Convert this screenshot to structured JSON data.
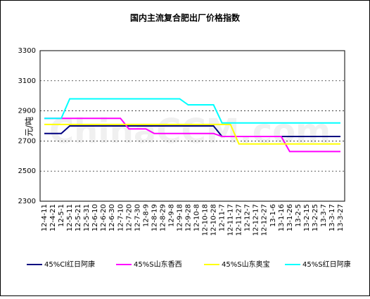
{
  "chart_data": {
    "type": "line",
    "title": "国内主流复合肥出厂价格指数",
    "y_label": "元/吨",
    "watermark": "ChinaCCM.com",
    "categories": [
      "12-4-11",
      "12-4-21",
      "12-5-1",
      "12-5-11",
      "12-5-21",
      "12-5-31",
      "12-6-10",
      "12-6-20",
      "12-6-30",
      "12-7-10",
      "12-7-20",
      "12-7-30",
      "12-8-9",
      "12-8-19",
      "12-8-29",
      "12-9-8",
      "12-9-18",
      "12-9-28",
      "12-10-8",
      "12-10-18",
      "12-10-28",
      "12-11-7",
      "12-11-17",
      "12-11-27",
      "12-12-7",
      "12-12-17",
      "12-12-27",
      "13-1-6",
      "13-1-16",
      "13-1-26",
      "13-2-5",
      "13-2-15",
      "13-2-25",
      "13-3-7",
      "13-3-17",
      "13-3-27"
    ],
    "series": [
      {
        "name": "45%Cl红日阿康",
        "color": "#000080",
        "values": [
          2750,
          2750,
          2750,
          2800,
          2800,
          2800,
          2800,
          2800,
          2800,
          2800,
          2800,
          2800,
          2800,
          2800,
          2800,
          2800,
          2800,
          2800,
          2800,
          2800,
          2800,
          2730,
          2730,
          2730,
          2730,
          2730,
          2730,
          2730,
          2730,
          2730,
          2730,
          2730,
          2730,
          2730,
          2730,
          2730
        ]
      },
      {
        "name": "45%S山东香西",
        "color": "#ff00ff",
        "values": [
          2850,
          2850,
          2850,
          2850,
          2850,
          2850,
          2850,
          2850,
          2850,
          2850,
          2780,
          2780,
          2780,
          2750,
          2750,
          2750,
          2750,
          2750,
          2750,
          2750,
          2750,
          2730,
          2730,
          2730,
          2730,
          2730,
          2730,
          2730,
          2730,
          2630,
          2630,
          2630,
          2630,
          2630,
          2630,
          2630
        ]
      },
      {
        "name": "45%S山东奥宝",
        "color": "#ffff00",
        "values": [
          2810,
          2810,
          2810,
          2810,
          2810,
          2810,
          2810,
          2810,
          2810,
          2810,
          2810,
          2810,
          2810,
          2810,
          2810,
          2810,
          2810,
          2810,
          2810,
          2810,
          2810,
          2810,
          2810,
          2680,
          2680,
          2680,
          2680,
          2680,
          2680,
          2680,
          2680,
          2680,
          2680,
          2680,
          2680,
          2680
        ]
      },
      {
        "name": "45%S红日阿康",
        "color": "#00ffff",
        "values": [
          2850,
          2850,
          2850,
          2980,
          2980,
          2980,
          2980,
          2980,
          2980,
          2980,
          2980,
          2980,
          2980,
          2980,
          2980,
          2980,
          2980,
          2940,
          2940,
          2940,
          2940,
          2820,
          2820,
          2820,
          2820,
          2820,
          2820,
          2820,
          2820,
          2820,
          2820,
          2820,
          2820,
          2820,
          2820,
          2820
        ]
      }
    ],
    "ylim": [
      2300,
      3300
    ],
    "yticks": [
      2300,
      2500,
      2700,
      2900,
      3100,
      3300
    ],
    "grid": true,
    "legend": "bottom"
  }
}
